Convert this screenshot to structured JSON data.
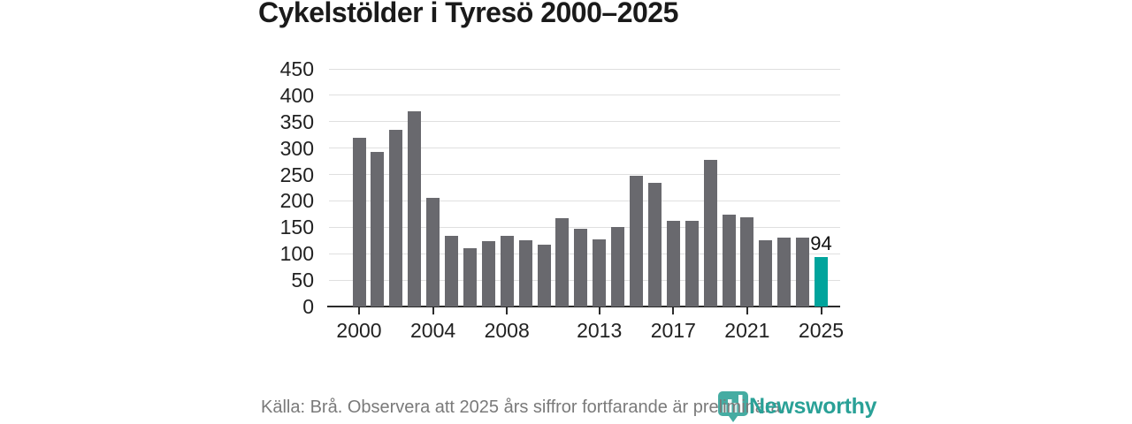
{
  "title": "Cykelstölder i Tyresö 2000–2025",
  "footer": {
    "source_note": "Källa: Brå. Observera att 2025 års siffror fortfarande är preliminära.",
    "brand": "Newsworthy"
  },
  "colors": {
    "bar": "#69696e",
    "highlight": "#00a49c",
    "grid": "#dfdfdf",
    "axis": "#2b2b2b",
    "title_text": "#1a1a1a",
    "footer_text": "#7a7a7a",
    "brand_teal": "#2aa197"
  },
  "chart_data": {
    "type": "bar",
    "title": "Cykelstölder i Tyresö 2000–2025",
    "categories": [
      2000,
      2001,
      2002,
      2003,
      2004,
      2005,
      2006,
      2007,
      2008,
      2009,
      2010,
      2011,
      2012,
      2013,
      2014,
      2015,
      2016,
      2017,
      2018,
      2019,
      2020,
      2021,
      2022,
      2023,
      2024,
      2025
    ],
    "values": [
      320,
      292,
      335,
      370,
      205,
      134,
      110,
      123,
      134,
      125,
      117,
      168,
      148,
      127,
      150,
      247,
      235,
      163,
      163,
      277,
      174,
      169,
      125,
      131,
      130,
      94
    ],
    "highlight_index": 25,
    "highlight_label": "94",
    "y_ticks": [
      0,
      50,
      100,
      150,
      200,
      250,
      300,
      350,
      400,
      450
    ],
    "x_tick_years": [
      2000,
      2004,
      2008,
      2013,
      2017,
      2021,
      2025
    ],
    "ylim": [
      0,
      450
    ],
    "grid": true,
    "legend": "none",
    "source": "Källa: Brå. Observera att 2025 års siffror fortfarande är preliminära."
  }
}
